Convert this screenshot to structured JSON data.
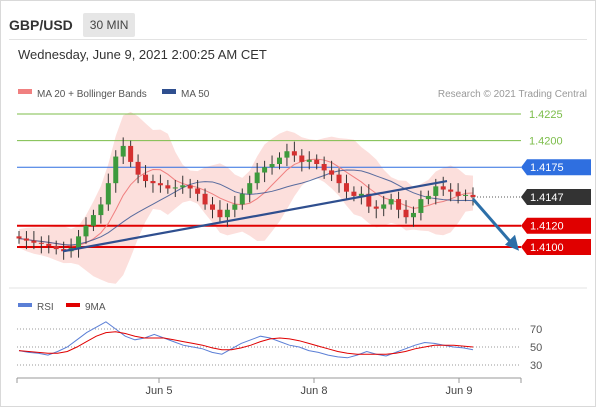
{
  "header": {
    "symbol": "GBP/USD",
    "timeframe": "30 MIN",
    "datetime": "Wednesday, June 9, 2021 2:00:25 AM CET"
  },
  "main_legend": [
    {
      "label": "MA 20 + Bollinger Bands",
      "color": "#f08080"
    },
    {
      "label": "MA 50",
      "color": "#2f4f8f"
    }
  ],
  "copyright": "Research © 2021 Trading Central",
  "levels": [
    {
      "value": 1.4225,
      "label": "1.4225",
      "kind": "target",
      "color": "#7cbd4a"
    },
    {
      "value": 1.42,
      "label": "1.4200",
      "kind": "target",
      "color": "#7cbd4a"
    },
    {
      "value": 1.4175,
      "label": "1.4175",
      "kind": "pivot",
      "color": "#2f6fe0"
    },
    {
      "value": 1.4147,
      "label": "1.4147",
      "kind": "last",
      "color": "#333333"
    },
    {
      "value": 1.412,
      "label": "1.4120",
      "kind": "support",
      "color": "#e00000"
    },
    {
      "value": 1.41,
      "label": "1.4100",
      "kind": "support",
      "color": "#e00000"
    }
  ],
  "rsi_legend": [
    {
      "label": "RSI",
      "color": "#5b7fd6"
    },
    {
      "label": "9MA",
      "color": "#e00000"
    }
  ],
  "rsi_ticks": [
    "70",
    "50",
    "30"
  ],
  "x_labels": [
    "Jun 5",
    "Jun 8",
    "Jun 9"
  ],
  "colors": {
    "up": "#3d9a3d",
    "down": "#d43030",
    "band_fill": "#fbd9d6",
    "trend": "#2f4f8f"
  },
  "chart_data": [
    {
      "type": "candlestick",
      "title": "GBP/USD",
      "xlabel": "",
      "ylabel": "",
      "x_ticks": [
        "Jun 5",
        "Jun 8",
        "Jun 9"
      ],
      "y_ticks": [
        1.4225,
        1.42,
        1.4175,
        1.4147,
        1.412,
        1.41
      ],
      "ylim": [
        1.4085,
        1.4245
      ],
      "close_series": [
        1.4108,
        1.4106,
        1.4104,
        1.4103,
        1.4101,
        1.4098,
        1.4096,
        1.4099,
        1.411,
        1.412,
        1.413,
        1.414,
        1.416,
        1.4185,
        1.4195,
        1.418,
        1.4168,
        1.4162,
        1.416,
        1.4158,
        1.4155,
        1.4156,
        1.4158,
        1.4155,
        1.415,
        1.414,
        1.4135,
        1.4128,
        1.4135,
        1.414,
        1.415,
        1.416,
        1.417,
        1.4175,
        1.4178,
        1.4184,
        1.419,
        1.4186,
        1.418,
        1.4182,
        1.4178,
        1.4172,
        1.4168,
        1.416,
        1.4152,
        1.4148,
        1.415,
        1.4138,
        1.4136,
        1.414,
        1.4145,
        1.4135,
        1.4128,
        1.4132,
        1.4145,
        1.4148,
        1.4157,
        1.4154,
        1.4152,
        1.4148,
        1.4149,
        1.4147
      ],
      "trendline": [
        [
          1.4096,
          1.4162
        ]
      ],
      "forecast": {
        "from": 1.4147,
        "to": 1.4104
      },
      "levels": [
        1.4225,
        1.42,
        1.4175,
        1.412,
        1.41
      ],
      "last_price": 1.4147
    },
    {
      "type": "line",
      "title": "RSI",
      "series": [
        {
          "name": "RSI",
          "values": [
            46,
            44,
            43,
            41,
            45,
            50,
            58,
            66,
            72,
            78,
            70,
            62,
            58,
            60,
            64,
            60,
            56,
            52,
            50,
            48,
            44,
            42,
            48,
            54,
            58,
            62,
            60,
            56,
            52,
            50,
            46,
            44,
            41,
            39,
            38,
            41,
            45,
            42,
            40,
            44,
            48,
            52,
            55,
            54,
            52,
            50,
            49,
            47
          ]
        },
        {
          "name": "9MA",
          "values": [
            46,
            45,
            44,
            43,
            43,
            45,
            50,
            56,
            62,
            66,
            67,
            65,
            62,
            60,
            60,
            60,
            58,
            56,
            54,
            52,
            49,
            47,
            47,
            49,
            52,
            56,
            59,
            60,
            59,
            57,
            54,
            51,
            48,
            45,
            43,
            42,
            42,
            42,
            42,
            43,
            45,
            48,
            50,
            52,
            52,
            52,
            51,
            50
          ]
        }
      ],
      "y_ticks": [
        70,
        50,
        30
      ],
      "ylim": [
        20,
        85
      ]
    }
  ]
}
